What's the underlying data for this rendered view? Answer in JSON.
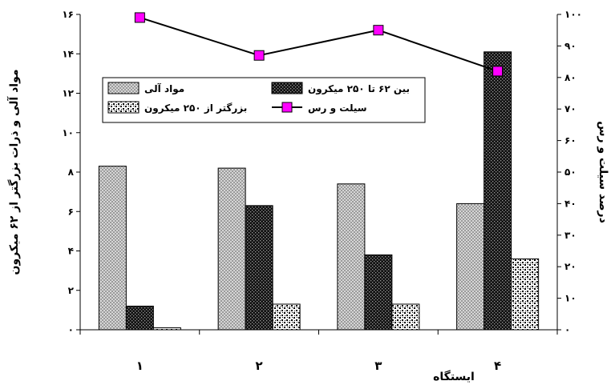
{
  "chart_data": {
    "type": "bar",
    "categories": [
      "۱",
      "۲",
      "۳",
      "۴"
    ],
    "xlabel": "ایستگاه",
    "ylabel": "مواد آلی و ذرات بزرگتر از ۶۲ میکرون",
    "y2label": "درصد سیلت و رس",
    "ylim": [
      0,
      16
    ],
    "y2lim": [
      0,
      100
    ],
    "yticks": [
      "۰",
      "۲",
      "۴",
      "۶",
      "۸",
      "۱۰",
      "۱۲",
      "۱۴",
      "۱۶"
    ],
    "y2ticks": [
      "۰",
      "۱۰",
      "۲۰",
      "۳۰",
      "۴۰",
      "۵۰",
      "۶۰",
      "۷۰",
      "۸۰",
      "۹۰",
      "۱۰۰"
    ],
    "grid": false,
    "legend_position": "upper-left",
    "series": [
      {
        "name": "مواد آلی",
        "kind": "bar",
        "axis": "left",
        "pattern": "light-crosshatch",
        "values": [
          8.3,
          8.2,
          7.4,
          6.4
        ]
      },
      {
        "name": "بین ۶۲ تا ۲۵۰ میکرون",
        "kind": "bar",
        "axis": "left",
        "pattern": "dark-dots",
        "values": [
          1.2,
          6.3,
          3.8,
          14.1
        ]
      },
      {
        "name": "بزرگتر از ۲۵۰ میکرون",
        "kind": "bar",
        "axis": "left",
        "pattern": "confetti",
        "values": [
          0.1,
          1.3,
          1.3,
          3.6
        ]
      },
      {
        "name": "سیلت و رس",
        "kind": "line",
        "axis": "right",
        "color": "#ff00ff",
        "values": [
          99,
          87,
          95,
          82
        ]
      }
    ]
  }
}
